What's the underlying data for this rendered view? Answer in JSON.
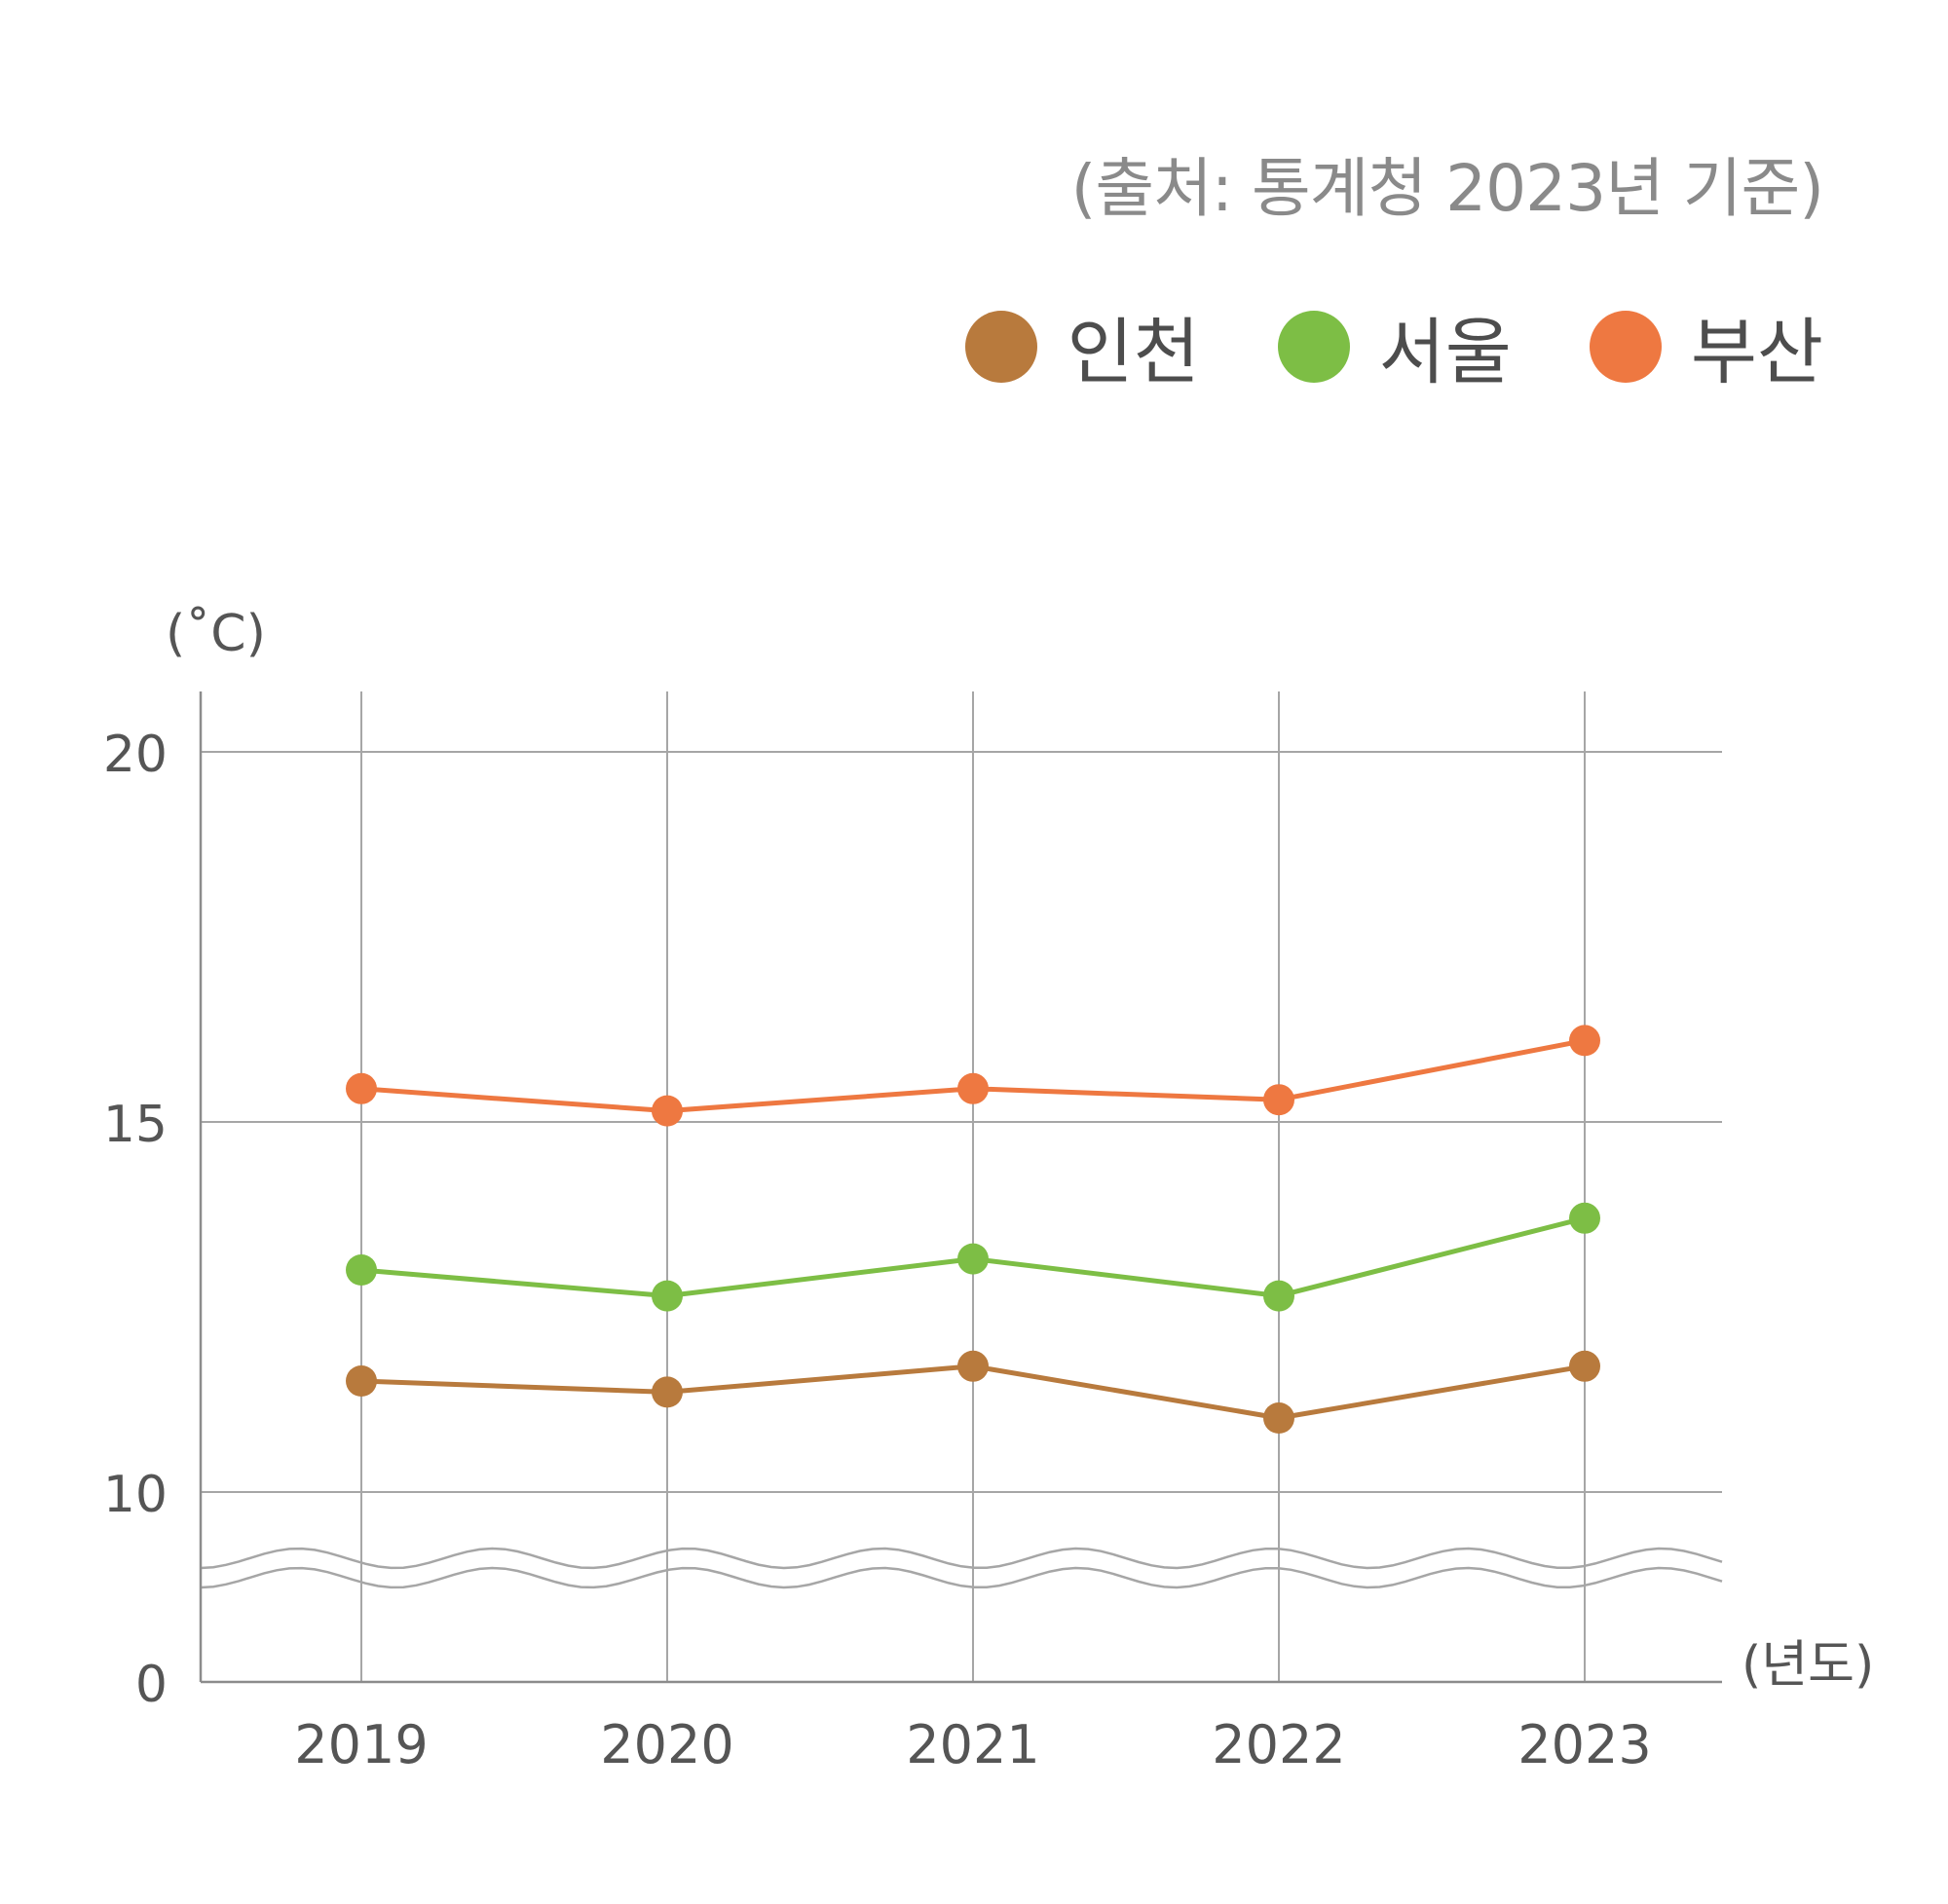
{
  "source_text": "(출처: 통계청 2023년 기준)",
  "legend": [
    {
      "label": "인천",
      "color": "#b87a3d"
    },
    {
      "label": "서울",
      "color": "#7dbe45"
    },
    {
      "label": "부산",
      "color": "#ee7841"
    }
  ],
  "chart_data": {
    "type": "line",
    "categories": [
      "2019",
      "2020",
      "2021",
      "2022",
      "2023"
    ],
    "series": [
      {
        "name": "인천",
        "color": "#b87a3d",
        "values": [
          11.5,
          11.35,
          11.7,
          11.0,
          11.7
        ]
      },
      {
        "name": "서울",
        "color": "#7dbe45",
        "values": [
          13.0,
          12.65,
          13.15,
          12.65,
          13.7
        ]
      },
      {
        "name": "부산",
        "color": "#ee7841",
        "values": [
          15.45,
          15.15,
          15.45,
          15.3,
          16.1
        ]
      }
    ],
    "y_unit_label": "(˚C)",
    "x_unit_label": "(년도)",
    "y_ticks": [
      "0",
      "10",
      "15",
      "20"
    ],
    "ylim": [
      0,
      20
    ],
    "axis_break": "between 0 and 10",
    "grid": true,
    "legend_position": "top-right"
  }
}
